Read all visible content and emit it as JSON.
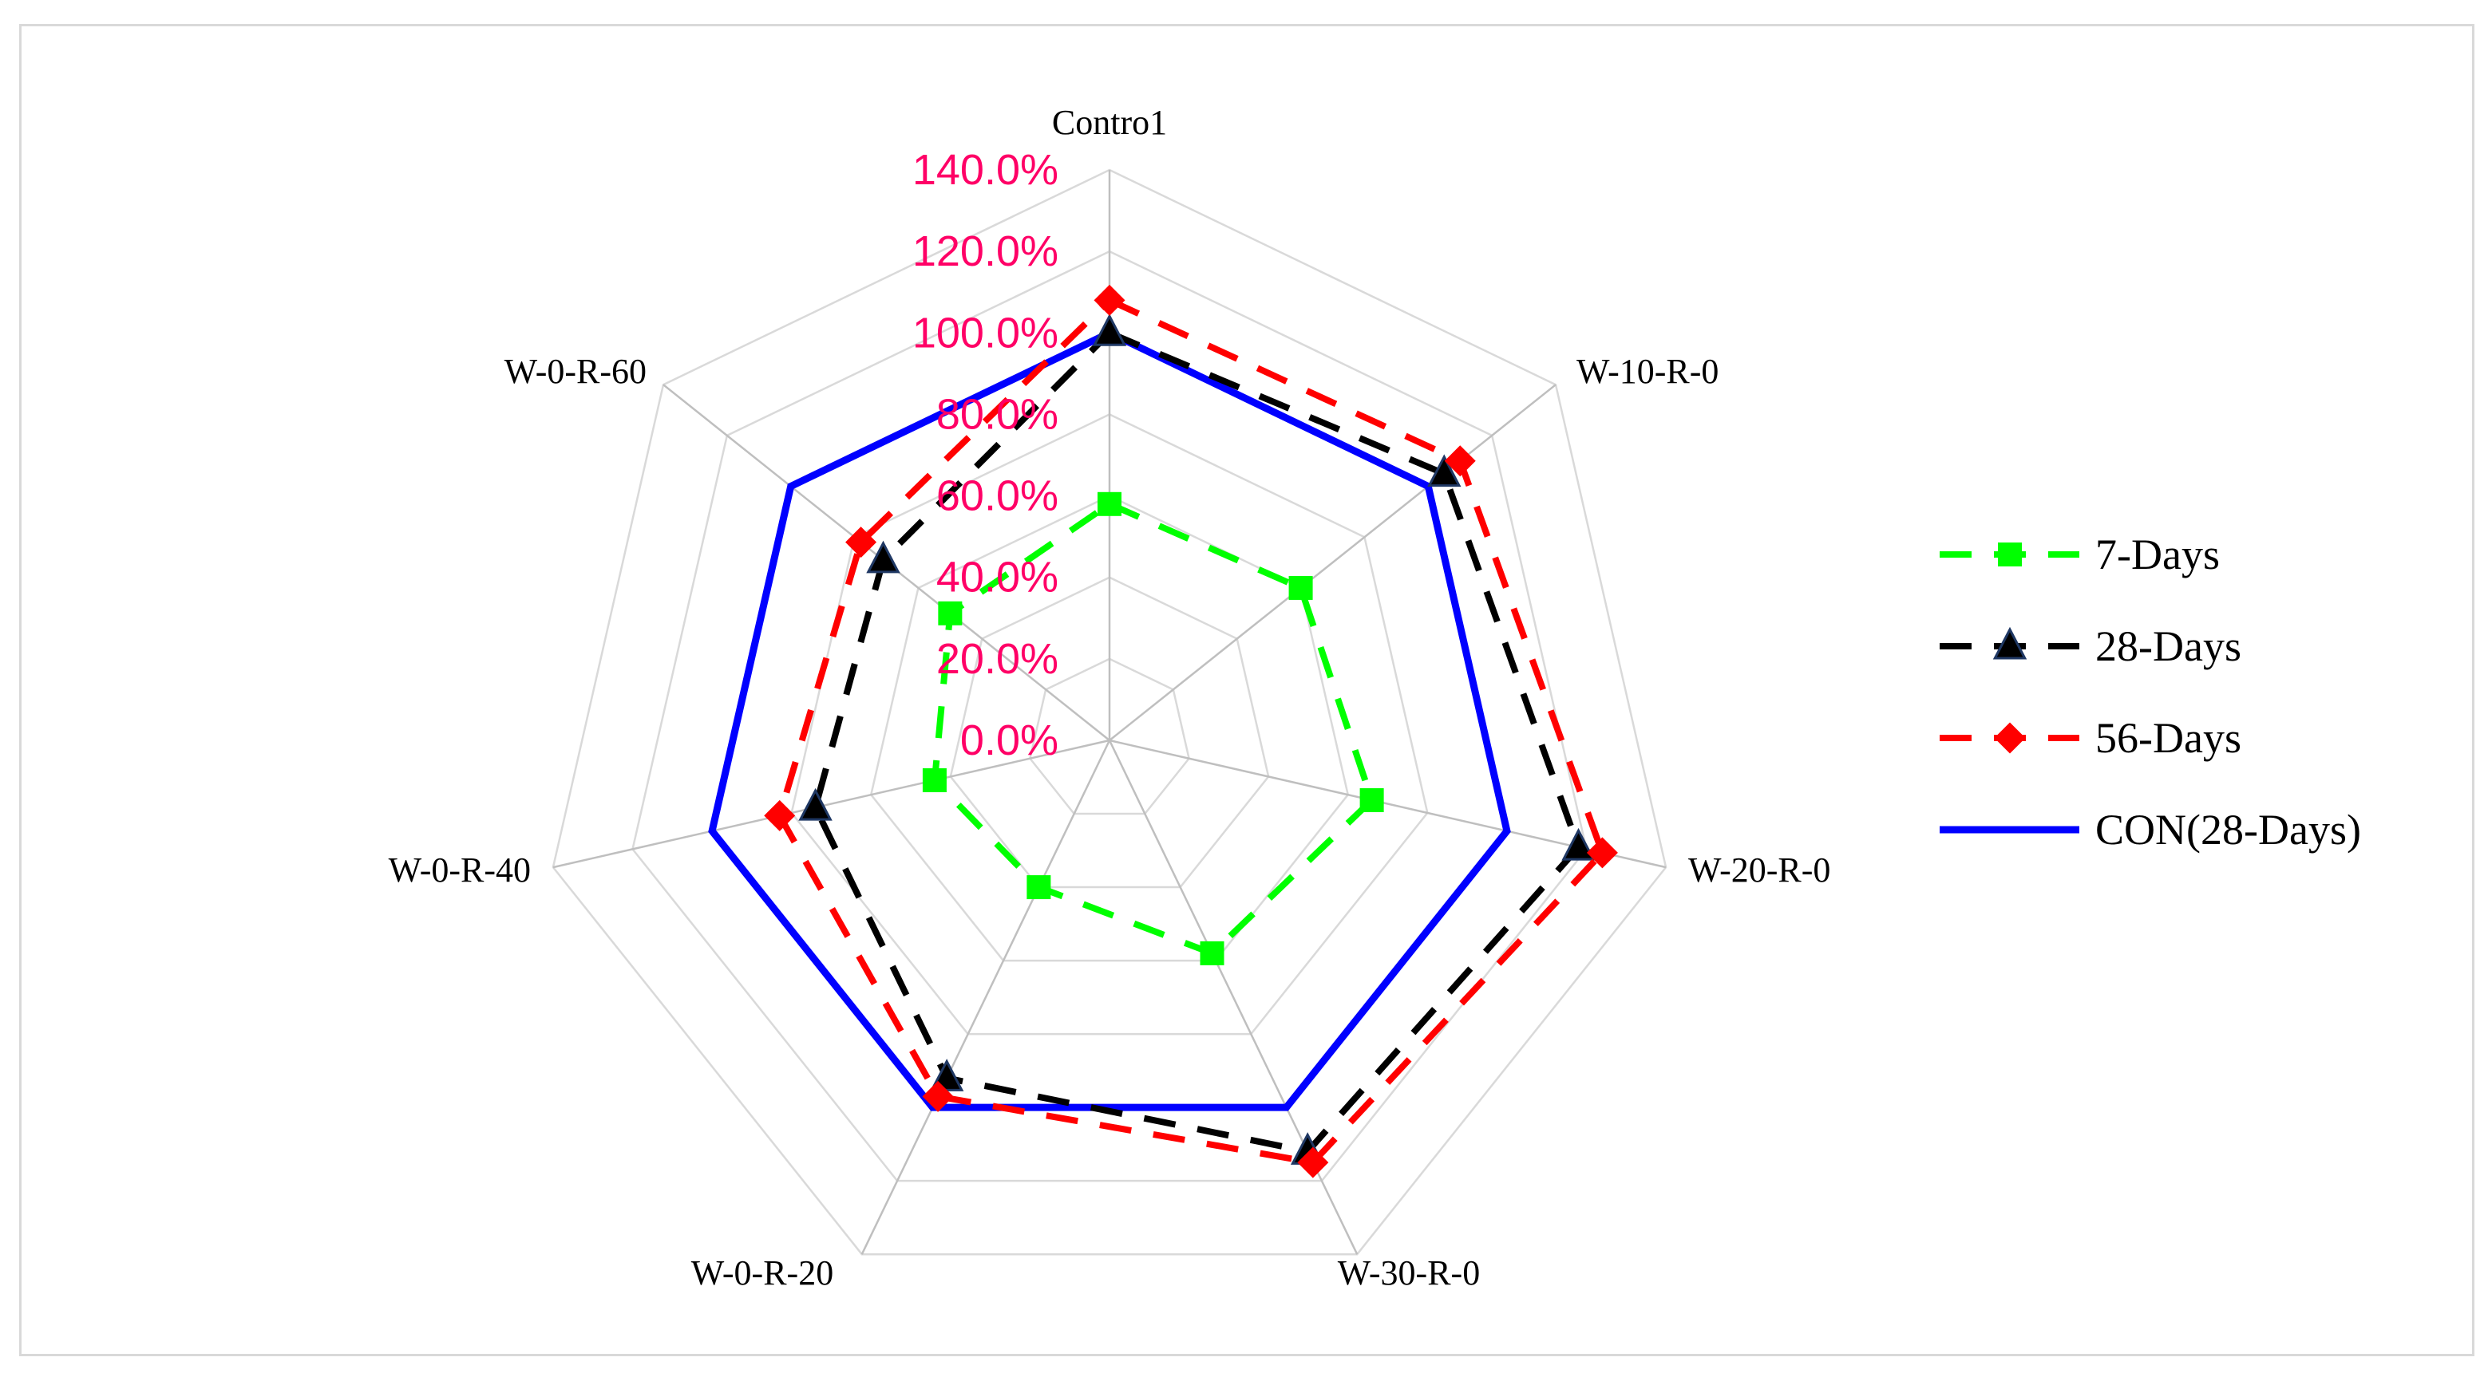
{
  "chart_data": {
    "type": "radar",
    "title": "",
    "categories": [
      "Contro1",
      "W-10-R-0",
      "W-20-R-0",
      "W-30-R-0",
      "W-0-R-20",
      "W-0-R-40",
      "W-0-R-60"
    ],
    "rlim": [
      0,
      1.4
    ],
    "ticks": [
      "0.0%",
      "20.0%",
      "40.0%",
      "60.0%",
      "80.0%",
      "100.0%",
      "120.0%",
      "140.0%"
    ],
    "tick_values": [
      0,
      0.2,
      0.4,
      0.6,
      0.8,
      1.0,
      1.2,
      1.4
    ],
    "tick_color": "#ff0066",
    "grid": true,
    "legend_position": "right",
    "series": [
      {
        "name": "7-Days",
        "values": [
          0.58,
          0.6,
          0.66,
          0.58,
          0.4,
          0.44,
          0.5
        ],
        "color": "#00ff00",
        "line": "dashed",
        "marker": "square"
      },
      {
        "name": "28-Days",
        "values": [
          1.0,
          1.05,
          1.18,
          1.12,
          0.92,
          0.74,
          0.71
        ],
        "color": "#000000",
        "line": "dashed",
        "marker": "triangle"
      },
      {
        "name": "56-Days",
        "values": [
          1.08,
          1.1,
          1.24,
          1.15,
          0.97,
          0.83,
          0.78
        ],
        "color": "#ff0000",
        "line": "dashed",
        "marker": "diamond"
      },
      {
        "name": "CON(28-Days)",
        "values": [
          1.0,
          1.0,
          1.0,
          1.0,
          1.0,
          1.0,
          1.0
        ],
        "color": "#0000ff",
        "line": "solid",
        "marker": "none"
      }
    ]
  }
}
